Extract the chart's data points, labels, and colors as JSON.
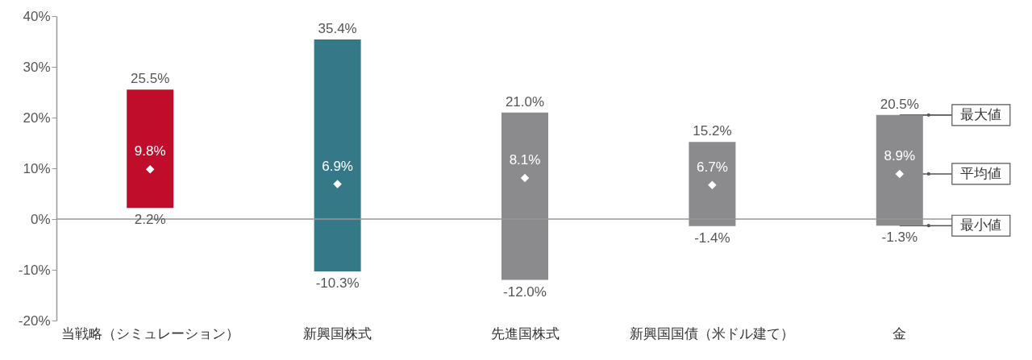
{
  "chart_data": {
    "type": "bar",
    "categories": [
      "当戦略（シミュレーション）",
      "新興国株式",
      "先進国株式",
      "新興国国債（米ドル建て）",
      "金"
    ],
    "series": [
      {
        "type": "bar",
        "colors": [
          "#c00d2b",
          "#357989",
          "#8b8b8e",
          "#8b8b8e",
          "#8b8b8e"
        ],
        "base": [
          2.2,
          -10.3,
          -12.0,
          -1.4,
          -1.3
        ],
        "values": [
          23.3,
          45.7,
          33.0,
          16.6,
          21.8
        ]
      },
      {
        "type": "scatter",
        "x": [
          "当戦略（シミュレーション）",
          "新興国株式",
          "先進国株式",
          "新興国国債（米ドル建て）",
          "金"
        ],
        "values": [
          9.8,
          6.9,
          8.1,
          6.7,
          8.9
        ],
        "color": "#ffffff",
        "marker": "diamond",
        "value_labels": [
          "9.8%",
          "6.9%",
          "8.1%",
          "6.7%",
          "8.9%"
        ]
      }
    ],
    "ylim": [
      -20,
      40
    ],
    "yticks": [
      {
        "value": -20,
        "label": "-20%"
      },
      {
        "value": -10,
        "label": "-10%"
      },
      {
        "value": 0,
        "label": "0%"
      },
      {
        "value": 10,
        "label": "10%"
      },
      {
        "value": 20,
        "label": "20%"
      },
      {
        "value": 30,
        "label": "30%"
      },
      {
        "value": 40,
        "label": "40%"
      }
    ],
    "annotations": [
      {
        "text": "最大値",
        "x": "金",
        "y": 20.5
      },
      {
        "text": "平均値",
        "x": "金",
        "y": 8.9
      },
      {
        "text": "最小値",
        "x": "金",
        "y": -1.3
      },
      {
        "text": "25.5%",
        "x": "当戦略（シミュレーション）",
        "y": 25.5
      },
      {
        "text": "2.2%",
        "x": "当戦略（シミュレーション）",
        "y": 2.2
      },
      {
        "text": "35.4%",
        "x": "新興国株式",
        "y": 35.4
      },
      {
        "text": "-10.3%",
        "x": "新興国株式",
        "y": -10.3
      },
      {
        "text": "21.0%",
        "x": "先進国株式",
        "y": 21.0
      },
      {
        "text": "-12.0%",
        "x": "先進国株式",
        "y": -12.0
      },
      {
        "text": "15.2%",
        "x": "新興国国債（米ドル建て）",
        "y": 15.2
      },
      {
        "text": "-1.4%",
        "x": "新興国国債（米ドル建て）",
        "y": -1.4
      },
      {
        "text": "20.5%",
        "x": "金",
        "y": 20.5
      },
      {
        "text": "-1.3%",
        "x": "金",
        "y": -1.3
      }
    ]
  }
}
